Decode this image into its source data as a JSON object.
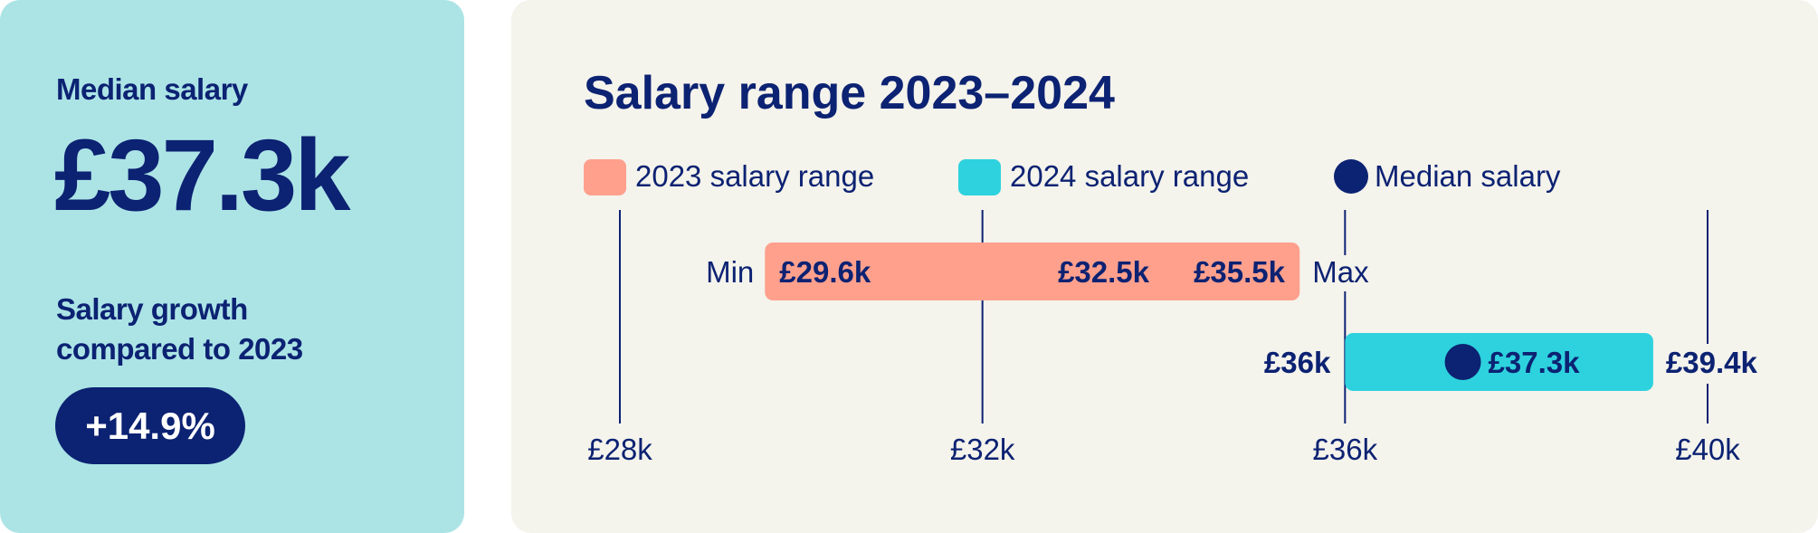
{
  "summary": {
    "median_label": "Median salary",
    "median_value": "£37.3k",
    "growth_label_line1": "Salary growth",
    "growth_label_line2": "compared to 2023",
    "growth_value": "+14.9%"
  },
  "chart_data": {
    "type": "range-bar",
    "title": "Salary range 2023–2024",
    "legend": [
      {
        "label": "2023 salary range",
        "color": "#ffa08c",
        "shape": "square"
      },
      {
        "label": "2024 salary range",
        "color": "#2dd2de",
        "shape": "square"
      },
      {
        "label": "Median salary",
        "color": "#0c2272",
        "shape": "circle"
      }
    ],
    "xlim": [
      28,
      40
    ],
    "x_ticks": [
      28,
      32,
      36,
      40
    ],
    "x_tick_labels": [
      "£28k",
      "£32k",
      "£36k",
      "£40k"
    ],
    "min_label": "Min",
    "max_label": "Max",
    "series": [
      {
        "name": "2023 salary range",
        "min": 29.6,
        "max": 35.5,
        "labels": [
          "£29.6k",
          "£32.5k",
          "£35.5k"
        ],
        "color": "#ffa08c"
      },
      {
        "name": "2024 salary range",
        "min": 36.0,
        "max": 39.4,
        "median": 37.3,
        "min_label": "£36k",
        "median_label": "£37.3k",
        "max_label": "£39.4k",
        "color": "#2dd2de"
      }
    ]
  }
}
